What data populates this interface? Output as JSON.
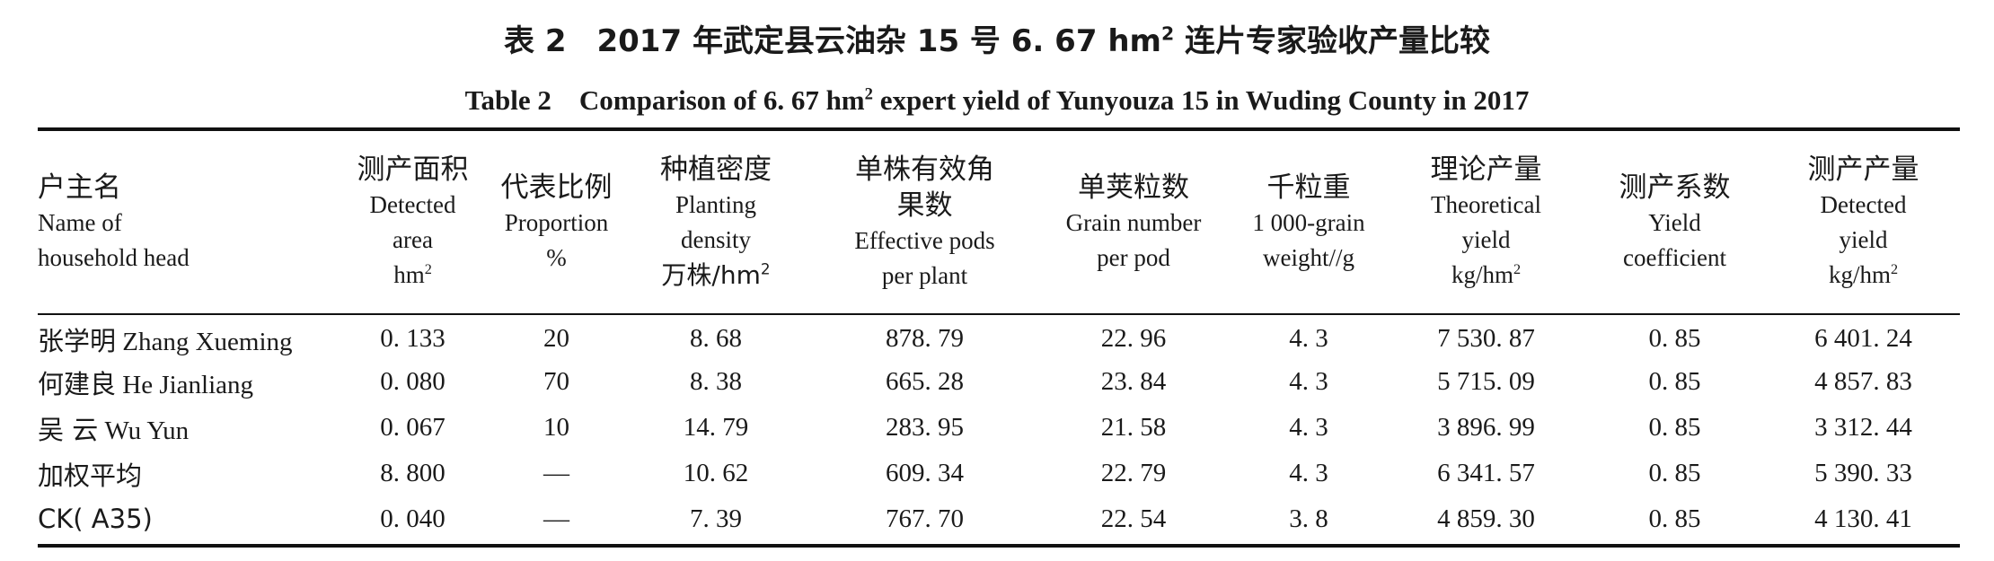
{
  "caption": {
    "cn_prefix": "表 2　2017 年武定县云油杂 15 号 6. 67 hm",
    "cn_sup": "2",
    "cn_suffix": " 连片专家验收产量比较",
    "en_prefix": "Table 2　Comparison of 6. 67 hm",
    "en_sup": "2",
    "en_suffix": " expert yield of Yunyouza 15 in Wuding County in 2017"
  },
  "columns": [
    {
      "cn": "户主名",
      "en": [
        "Name of",
        "household head"
      ],
      "unit": "",
      "unit_sup": ""
    },
    {
      "cn": "测产面积",
      "en": [
        "Detected",
        "area"
      ],
      "unit": "hm",
      "unit_sup": "2"
    },
    {
      "cn": "代表比例",
      "en": [
        "Proportion"
      ],
      "unit": "%",
      "unit_sup": ""
    },
    {
      "cn": "种植密度",
      "en": [
        "Planting",
        "density"
      ],
      "unit": "万株/hm",
      "unit_sup": "2"
    },
    {
      "cn": "单株有效角果数",
      "en": [
        "Effective pods",
        "per plant"
      ],
      "unit": "",
      "unit_sup": ""
    },
    {
      "cn": "单荚粒数",
      "en": [
        "Grain number",
        "per pod"
      ],
      "unit": "",
      "unit_sup": ""
    },
    {
      "cn": "千粒重",
      "en": [
        "1 000-grain",
        "weight//g"
      ],
      "unit": "",
      "unit_sup": ""
    },
    {
      "cn": "理论产量",
      "en": [
        "Theoretical",
        "yield"
      ],
      "unit": "kg/hm",
      "unit_sup": "2"
    },
    {
      "cn": "测产系数",
      "en": [
        "Yield",
        "coefficient"
      ],
      "unit": "",
      "unit_sup": ""
    },
    {
      "cn": "测产产量",
      "en": [
        "Detected",
        "yield"
      ],
      "unit": "kg/hm",
      "unit_sup": "2"
    }
  ],
  "header_lines": {
    "c4_cn_1": "单株有效角",
    "c4_cn_2": "果数"
  },
  "rows": [
    {
      "name_cn": "张学明",
      "name_en": "Zhang Xueming",
      "area": "0. 133",
      "proportion": "20",
      "density": "8. 68",
      "pods": "878. 79",
      "grains": "22. 96",
      "weight": "4. 3",
      "theoretical": "7 530. 87",
      "coefficient": "0. 85",
      "detected": "6 401. 24"
    },
    {
      "name_cn": "何建良",
      "name_en": "He Jianliang",
      "area": "0. 080",
      "proportion": "70",
      "density": "8. 38",
      "pods": "665. 28",
      "grains": "23. 84",
      "weight": "4. 3",
      "theoretical": "5 715. 09",
      "coefficient": "0. 85",
      "detected": "4 857. 83"
    },
    {
      "name_cn": "吴 云",
      "name_en": "Wu Yun",
      "area": "0. 067",
      "proportion": "10",
      "density": "14. 79",
      "pods": "283. 95",
      "grains": "21. 58",
      "weight": "4. 3",
      "theoretical": "3 896. 99",
      "coefficient": "0. 85",
      "detected": "3 312. 44"
    },
    {
      "name_cn": "加权平均",
      "name_en": "",
      "area": "8. 800",
      "proportion": "—",
      "density": "10. 62",
      "pods": "609. 34",
      "grains": "22. 79",
      "weight": "4. 3",
      "theoretical": "6 341. 57",
      "coefficient": "0. 85",
      "detected": "5 390. 33"
    },
    {
      "name_cn": "CK( A35)",
      "name_en": "",
      "area": "0. 040",
      "proportion": "—",
      "density": "7. 39",
      "pods": "767. 70",
      "grains": "22. 54",
      "weight": "3. 8",
      "theoretical": "4 859. 30",
      "coefficient": "0. 85",
      "detected": "4 130. 41"
    }
  ]
}
